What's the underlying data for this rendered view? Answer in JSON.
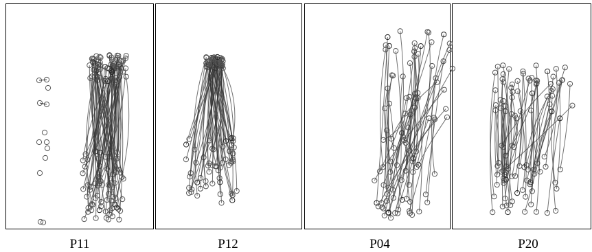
{
  "figure": {
    "panels": [
      {
        "label": "P11"
      },
      {
        "label": "P12"
      },
      {
        "label": "P04"
      },
      {
        "label": "P20"
      }
    ]
  }
}
